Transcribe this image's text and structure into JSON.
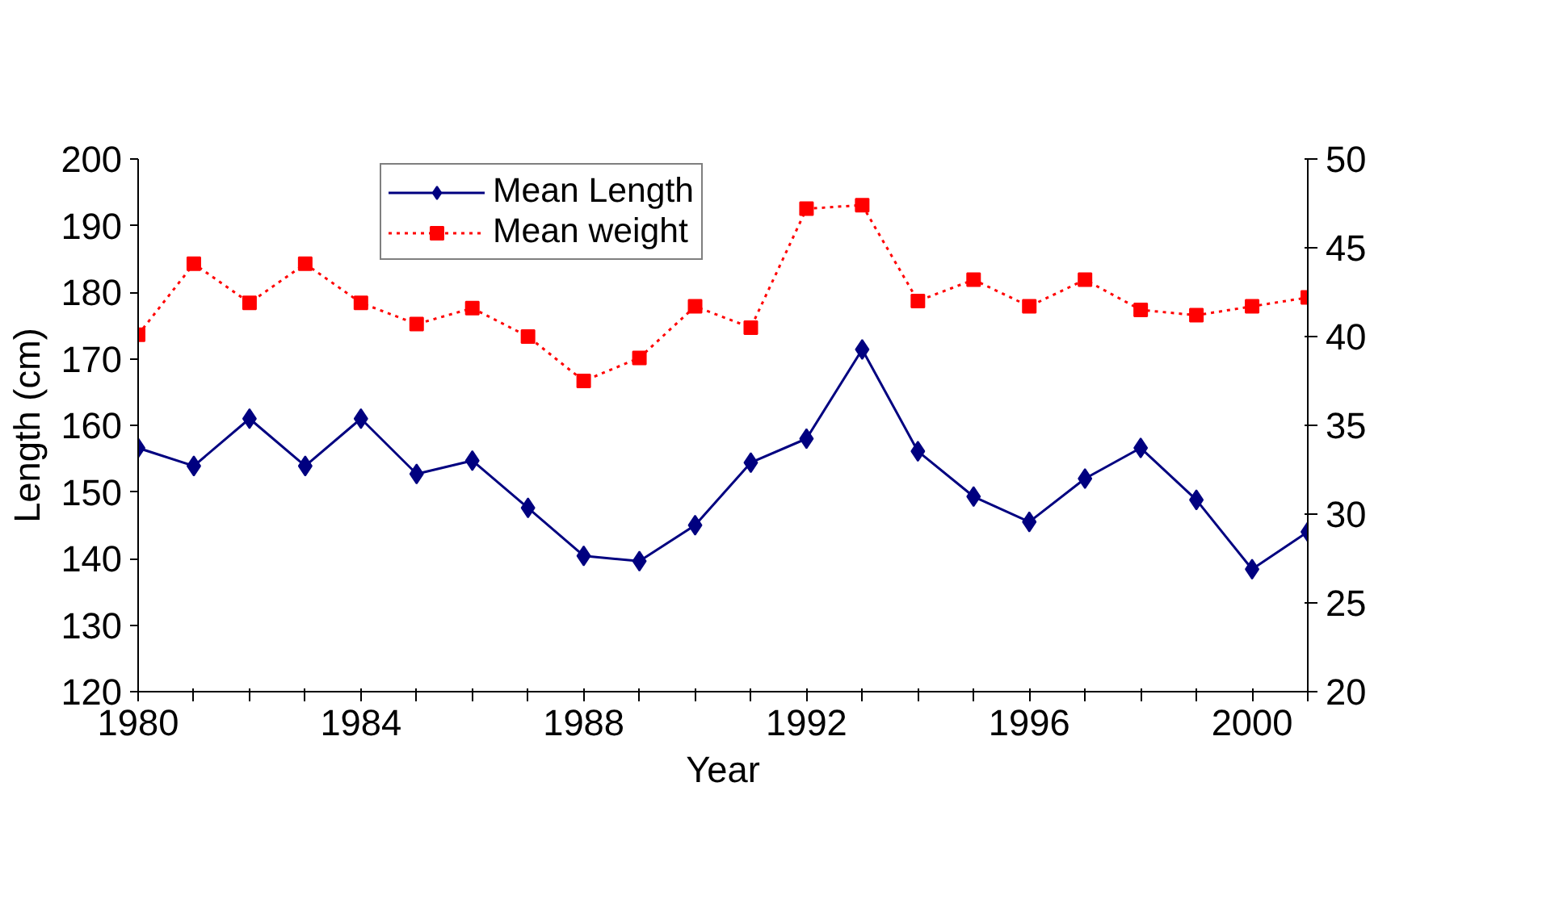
{
  "chart_data": {
    "type": "line",
    "xlabel": "Year",
    "ylabel": "Length (cm)",
    "x": [
      1980,
      1981,
      1982,
      1983,
      1984,
      1985,
      1986,
      1987,
      1988,
      1989,
      1990,
      1991,
      1992,
      1993,
      1994,
      1995,
      1996,
      1997,
      1998,
      1999,
      2000,
      2001
    ],
    "series": [
      {
        "name": "Mean Length",
        "color": "#000080",
        "marker": "diamond",
        "line_style": "solid",
        "values": [
          156.6,
          153.9,
          161,
          153.9,
          161,
          152.7,
          154.7,
          147.6,
          140.4,
          139.6,
          145,
          154.4,
          158,
          171.4,
          156.1,
          149.3,
          145.5,
          152,
          156.6,
          148.8,
          138.4,
          144
        ]
      },
      {
        "name": "Mean weight",
        "color": "#ff0000",
        "marker": "square",
        "line_style": "dotted",
        "axis": "y2",
        "values": [
          40.1,
          44.1,
          41.9,
          44.1,
          41.9,
          40.7,
          41.6,
          40,
          37.5,
          38.8,
          41.7,
          40.5,
          47.2,
          47.4,
          42,
          43.2,
          41.7,
          43.2,
          41.5,
          41.2,
          41.7,
          42.2
        ]
      }
    ],
    "xlim": [
      1980,
      2001
    ],
    "xticks": [
      1980,
      {
        "value": 1981,
        "label": null
      },
      {
        "value": 1982,
        "label": null
      },
      {
        "value": 1983,
        "label": null
      },
      1984,
      {
        "value": 1985,
        "label": null
      },
      {
        "value": 1986,
        "label": null
      },
      {
        "value": 1987,
        "label": null
      },
      1988,
      {
        "value": 1989,
        "label": null
      },
      {
        "value": 1990,
        "label": null
      },
      {
        "value": 1991,
        "label": null
      },
      1992,
      {
        "value": 1993,
        "label": null
      },
      {
        "value": 1994,
        "label": null
      },
      {
        "value": 1995,
        "label": null
      },
      1996,
      {
        "value": 1997,
        "label": null
      },
      {
        "value": 1998,
        "label": null
      },
      {
        "value": 1999,
        "label": null
      },
      2000,
      {
        "value": 2001,
        "label": null
      }
    ],
    "ylim": [
      120,
      200
    ],
    "yticks": [
      120,
      130,
      140,
      150,
      160,
      170,
      180,
      190,
      200
    ],
    "y2lim": [
      20,
      50
    ],
    "y2ticks": [
      20,
      25,
      30,
      35,
      40,
      45,
      50
    ],
    "grid": false,
    "legend": "top left"
  }
}
